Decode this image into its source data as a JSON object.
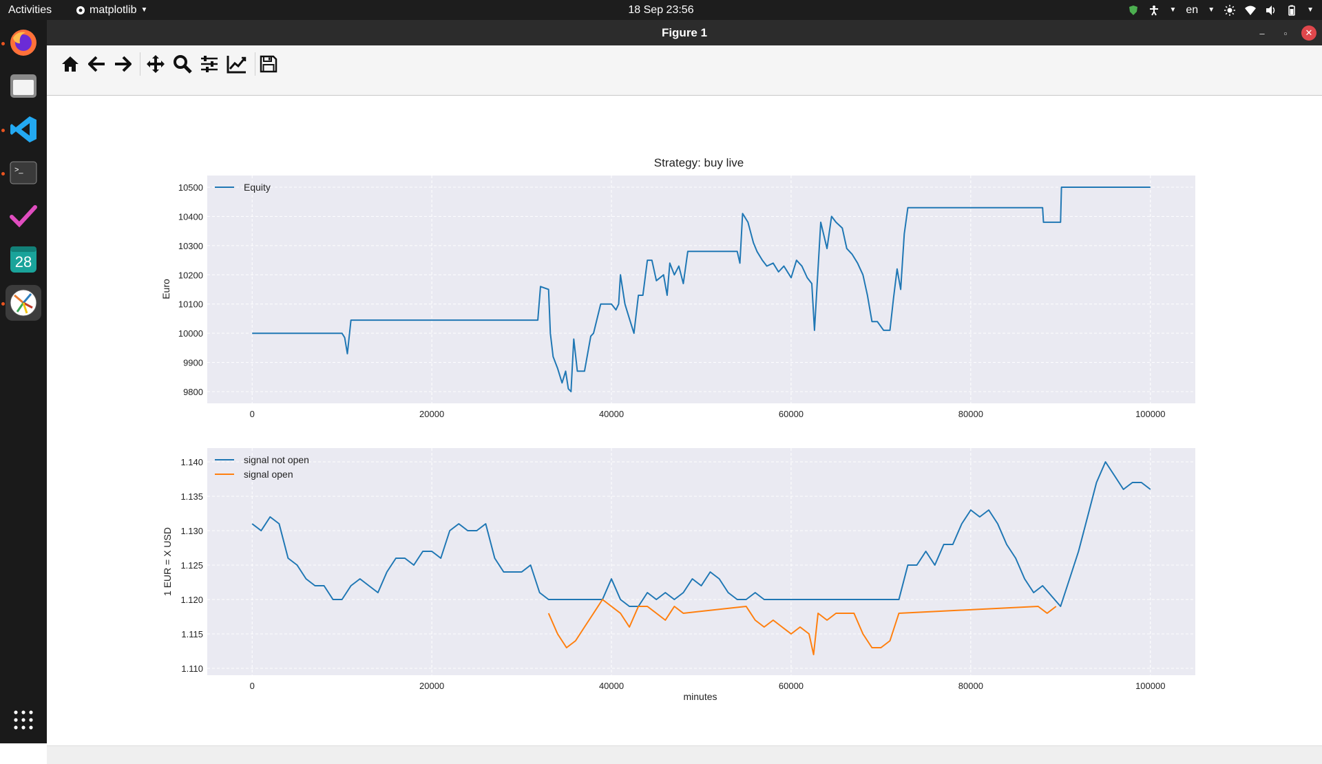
{
  "topbar": {
    "activities": "Activities",
    "app_name": "matplotlib",
    "clock": "18 Sep  23:56",
    "language": "en"
  },
  "dock": {
    "items": [
      "firefox-icon",
      "files-icon",
      "vscode-icon",
      "terminal-icon",
      "todo-icon",
      "calendar-icon",
      "matplotlib-icon"
    ],
    "calendar_day": "28",
    "grid_icon": "show-applications-icon"
  },
  "window": {
    "title": "Figure 1"
  },
  "toolbar": {
    "tools": [
      "home-icon",
      "back-icon",
      "forward-icon",
      "pan-icon",
      "zoom-icon",
      "subplots-icon",
      "edit-axes-icon",
      "save-icon"
    ]
  },
  "colors": {
    "series_blue": "#1f77b4",
    "series_orange": "#ff7f0e",
    "axes_bg": "#eaeaf2"
  },
  "chart_data": [
    {
      "type": "line",
      "title": "Strategy:  buy live",
      "xlabel": "",
      "ylabel": "Euro",
      "xlim": [
        -5000,
        105000
      ],
      "ylim": [
        9760,
        10540
      ],
      "xticks": [
        0,
        20000,
        40000,
        60000,
        80000,
        100000
      ],
      "yticks": [
        9800,
        9900,
        10000,
        10100,
        10200,
        10300,
        10400,
        10500
      ],
      "grid": true,
      "legend": "top-left",
      "series": [
        {
          "name": "Equity",
          "color": "#1f77b4",
          "x": [
            0,
            10000,
            10300,
            10600,
            11000,
            11200,
            15000,
            20000,
            25000,
            31800,
            32100,
            33000,
            33200,
            33500,
            34000,
            34500,
            34900,
            35200,
            35500,
            35800,
            36200,
            37000,
            37700,
            38000,
            38800,
            40000,
            40500,
            40800,
            41000,
            41500,
            42000,
            42500,
            43000,
            43500,
            44000,
            44500,
            45000,
            45800,
            46200,
            46500,
            47000,
            47500,
            48000,
            48500,
            49200,
            50000,
            52000,
            54000,
            54300,
            54600,
            55200,
            55800,
            56200,
            56800,
            57300,
            58000,
            58600,
            59200,
            60000,
            60600,
            61200,
            61800,
            62300,
            62600,
            63300,
            64000,
            64500,
            65000,
            65700,
            66200,
            66800,
            67400,
            68000,
            68500,
            69000,
            69600,
            70300,
            71000,
            71400,
            71800,
            72200,
            72600,
            73000,
            78000,
            84000,
            88000,
            88100,
            90000,
            90100,
            95000,
            100000
          ],
          "y": [
            10000,
            10000,
            9985,
            9930,
            10045,
            10045,
            10045,
            10045,
            10045,
            10045,
            10160,
            10150,
            10000,
            9920,
            9880,
            9830,
            9870,
            9810,
            9800,
            9980,
            9870,
            9870,
            9990,
            10000,
            10100,
            10100,
            10080,
            10100,
            10200,
            10100,
            10050,
            10000,
            10130,
            10130,
            10250,
            10250,
            10180,
            10200,
            10130,
            10240,
            10200,
            10230,
            10170,
            10280,
            10280,
            10280,
            10280,
            10280,
            10240,
            10410,
            10380,
            10310,
            10280,
            10250,
            10230,
            10240,
            10210,
            10230,
            10190,
            10250,
            10230,
            10190,
            10170,
            10010,
            10380,
            10290,
            10400,
            10380,
            10360,
            10290,
            10270,
            10240,
            10200,
            10130,
            10040,
            10040,
            10010,
            10010,
            10120,
            10220,
            10150,
            10340,
            10430,
            10430,
            10430,
            10430,
            10380,
            10380,
            10500,
            10500,
            10500
          ]
        }
      ]
    },
    {
      "type": "line",
      "title": "",
      "xlabel": "minutes",
      "ylabel": "1 EUR  =  X USD",
      "xlim": [
        -5000,
        105000
      ],
      "ylim": [
        1.109,
        1.142
      ],
      "xticks": [
        0,
        20000,
        40000,
        60000,
        80000,
        100000
      ],
      "yticks": [
        1.11,
        1.115,
        1.12,
        1.125,
        1.13,
        1.135,
        1.14
      ],
      "grid": true,
      "legend": "top-left",
      "series": [
        {
          "name": "signal not open",
          "color": "#1f77b4",
          "x": [
            0,
            1000,
            2000,
            3000,
            4000,
            5000,
            6000,
            7000,
            8000,
            9000,
            10000,
            11000,
            12000,
            13000,
            14000,
            15000,
            16000,
            17000,
            18000,
            19000,
            20000,
            21000,
            22000,
            23000,
            24000,
            25000,
            26000,
            27000,
            28000,
            29000,
            30000,
            31000,
            32000,
            33000,
            38000,
            39000,
            40000,
            41000,
            42000,
            43000,
            44000,
            45000,
            46000,
            47000,
            48000,
            49000,
            50000,
            51000,
            52000,
            53000,
            54000,
            55000,
            56000,
            57000,
            58000,
            72000,
            73000,
            74000,
            75000,
            76000,
            77000,
            78000,
            79000,
            80000,
            81000,
            82000,
            83000,
            84000,
            85000,
            86000,
            87000,
            88000,
            90000,
            91000,
            92000,
            93000,
            94000,
            95000,
            96000,
            97000,
            98000,
            99000,
            100000
          ],
          "y": [
            1.131,
            1.13,
            1.132,
            1.131,
            1.126,
            1.125,
            1.123,
            1.122,
            1.122,
            1.12,
            1.12,
            1.122,
            1.123,
            1.122,
            1.121,
            1.124,
            1.126,
            1.126,
            1.125,
            1.127,
            1.127,
            1.126,
            1.13,
            1.131,
            1.13,
            1.13,
            1.131,
            1.126,
            1.124,
            1.124,
            1.124,
            1.125,
            1.121,
            1.12,
            1.12,
            1.12,
            1.123,
            1.12,
            1.119,
            1.119,
            1.121,
            1.12,
            1.121,
            1.12,
            1.121,
            1.123,
            1.122,
            1.124,
            1.123,
            1.121,
            1.12,
            1.12,
            1.121,
            1.12,
            1.12,
            1.12,
            1.125,
            1.125,
            1.127,
            1.125,
            1.128,
            1.128,
            1.131,
            1.133,
            1.132,
            1.133,
            1.131,
            1.128,
            1.126,
            1.123,
            1.121,
            1.122,
            1.119,
            1.123,
            1.127,
            1.132,
            1.137,
            1.14,
            1.138,
            1.136,
            1.137,
            1.137,
            1.136
          ]
        },
        {
          "name": "signal open",
          "color": "#ff7f0e",
          "x": [
            33000,
            34000,
            35000,
            36000,
            37000,
            38000,
            39000,
            40000,
            41000,
            42000,
            43000,
            44000,
            45000,
            46000,
            47000,
            48000,
            55000,
            56000,
            57000,
            58000,
            59000,
            60000,
            61000,
            62000,
            62500,
            63000,
            64000,
            65000,
            66000,
            67000,
            68000,
            69000,
            70000,
            71000,
            72000,
            87500,
            88500,
            89500
          ],
          "y": [
            1.118,
            1.115,
            1.113,
            1.114,
            1.116,
            1.118,
            1.12,
            1.119,
            1.118,
            1.116,
            1.119,
            1.119,
            1.118,
            1.117,
            1.119,
            1.118,
            1.119,
            1.117,
            1.116,
            1.117,
            1.116,
            1.115,
            1.116,
            1.115,
            1.112,
            1.118,
            1.117,
            1.118,
            1.118,
            1.118,
            1.115,
            1.113,
            1.113,
            1.114,
            1.118,
            1.119,
            1.118,
            1.119
          ]
        }
      ]
    }
  ]
}
